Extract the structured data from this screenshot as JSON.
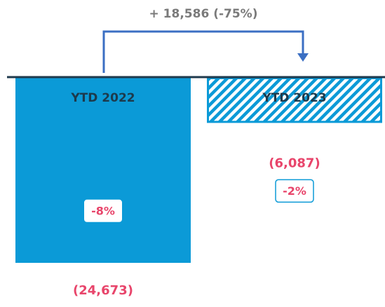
{
  "chart_data": {
    "type": "bar",
    "annotation": "+ 18,586 (-75%)",
    "categories": [
      "YTD 2022",
      "YTD 2023"
    ],
    "values": [
      -24673,
      -6087
    ],
    "value_labels": [
      "(24,673)",
      "(6,087)"
    ],
    "percent": [
      -8,
      -2
    ],
    "percent_labels": [
      "-8%",
      "-2%"
    ],
    "fill_styles": [
      "solid",
      "hatched"
    ],
    "color": "#0b9ad7"
  }
}
